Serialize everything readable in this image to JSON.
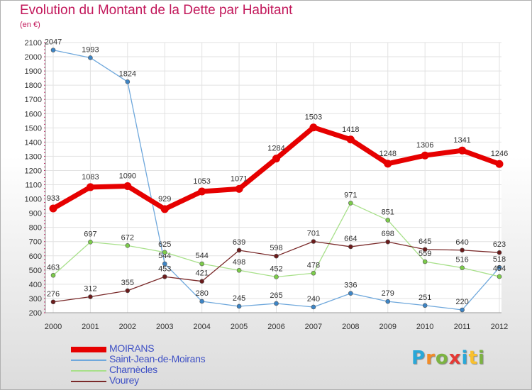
{
  "title": "Evolution du Montant de la Dette par Habitant",
  "subtitle": "(en €)",
  "brand": {
    "text": "Proxiti",
    "letters": [
      {
        "ch": "P",
        "color": "#29a8d8"
      },
      {
        "ch": "r",
        "color": "#f28c28"
      },
      {
        "ch": "o",
        "color": "#7cb342"
      },
      {
        "ch": "x",
        "color": "#e53935"
      },
      {
        "ch": "i",
        "color": "#29a8d8"
      },
      {
        "ch": "t",
        "color": "#f9c02d"
      },
      {
        "ch": "i",
        "color": "#7cb342"
      }
    ]
  },
  "chart_data": {
    "type": "line",
    "x": [
      "2000",
      "2001",
      "2002",
      "2003",
      "2004",
      "2005",
      "2006",
      "2007",
      "2008",
      "2009",
      "2010",
      "2011",
      "2012"
    ],
    "ylim": [
      200,
      2100
    ],
    "yticks": [
      200,
      300,
      400,
      500,
      600,
      700,
      800,
      900,
      1000,
      1100,
      1200,
      1300,
      1400,
      1500,
      1600,
      1700,
      1800,
      1900,
      2000,
      2100
    ],
    "grid": true,
    "legend_position": "bottom-left",
    "series": [
      {
        "name": "Saint-Jean-de-Moirans",
        "color": "#6fa8dc",
        "marker": "#3d85c6",
        "values": [
          2047,
          1993,
          1824,
          544,
          280,
          245,
          265,
          240,
          336,
          279,
          251,
          220,
          518
        ]
      },
      {
        "name": "Charnècles",
        "color": "#a8e08a",
        "marker": "#7ccc4a",
        "values": [
          463,
          697,
          672,
          625,
          544,
          498,
          452,
          478,
          971,
          851,
          559,
          516,
          454
        ]
      },
      {
        "name": "Vourey",
        "color": "#7a2a2a",
        "marker": "#6b1b1b",
        "values": [
          276,
          312,
          355,
          453,
          421,
          639,
          598,
          701,
          664,
          698,
          645,
          640,
          623
        ]
      },
      {
        "name": "MOIRANS",
        "color": "#e60000",
        "marker": "#e60000",
        "values": [
          933,
          1083,
          1090,
          929,
          1053,
          1071,
          1284,
          1503,
          1418,
          1248,
          1306,
          1341,
          1246
        ]
      }
    ],
    "legend_order": [
      "MOIRANS",
      "Saint-Jean-de-Moirans",
      "Charnècles",
      "Vourey"
    ]
  }
}
